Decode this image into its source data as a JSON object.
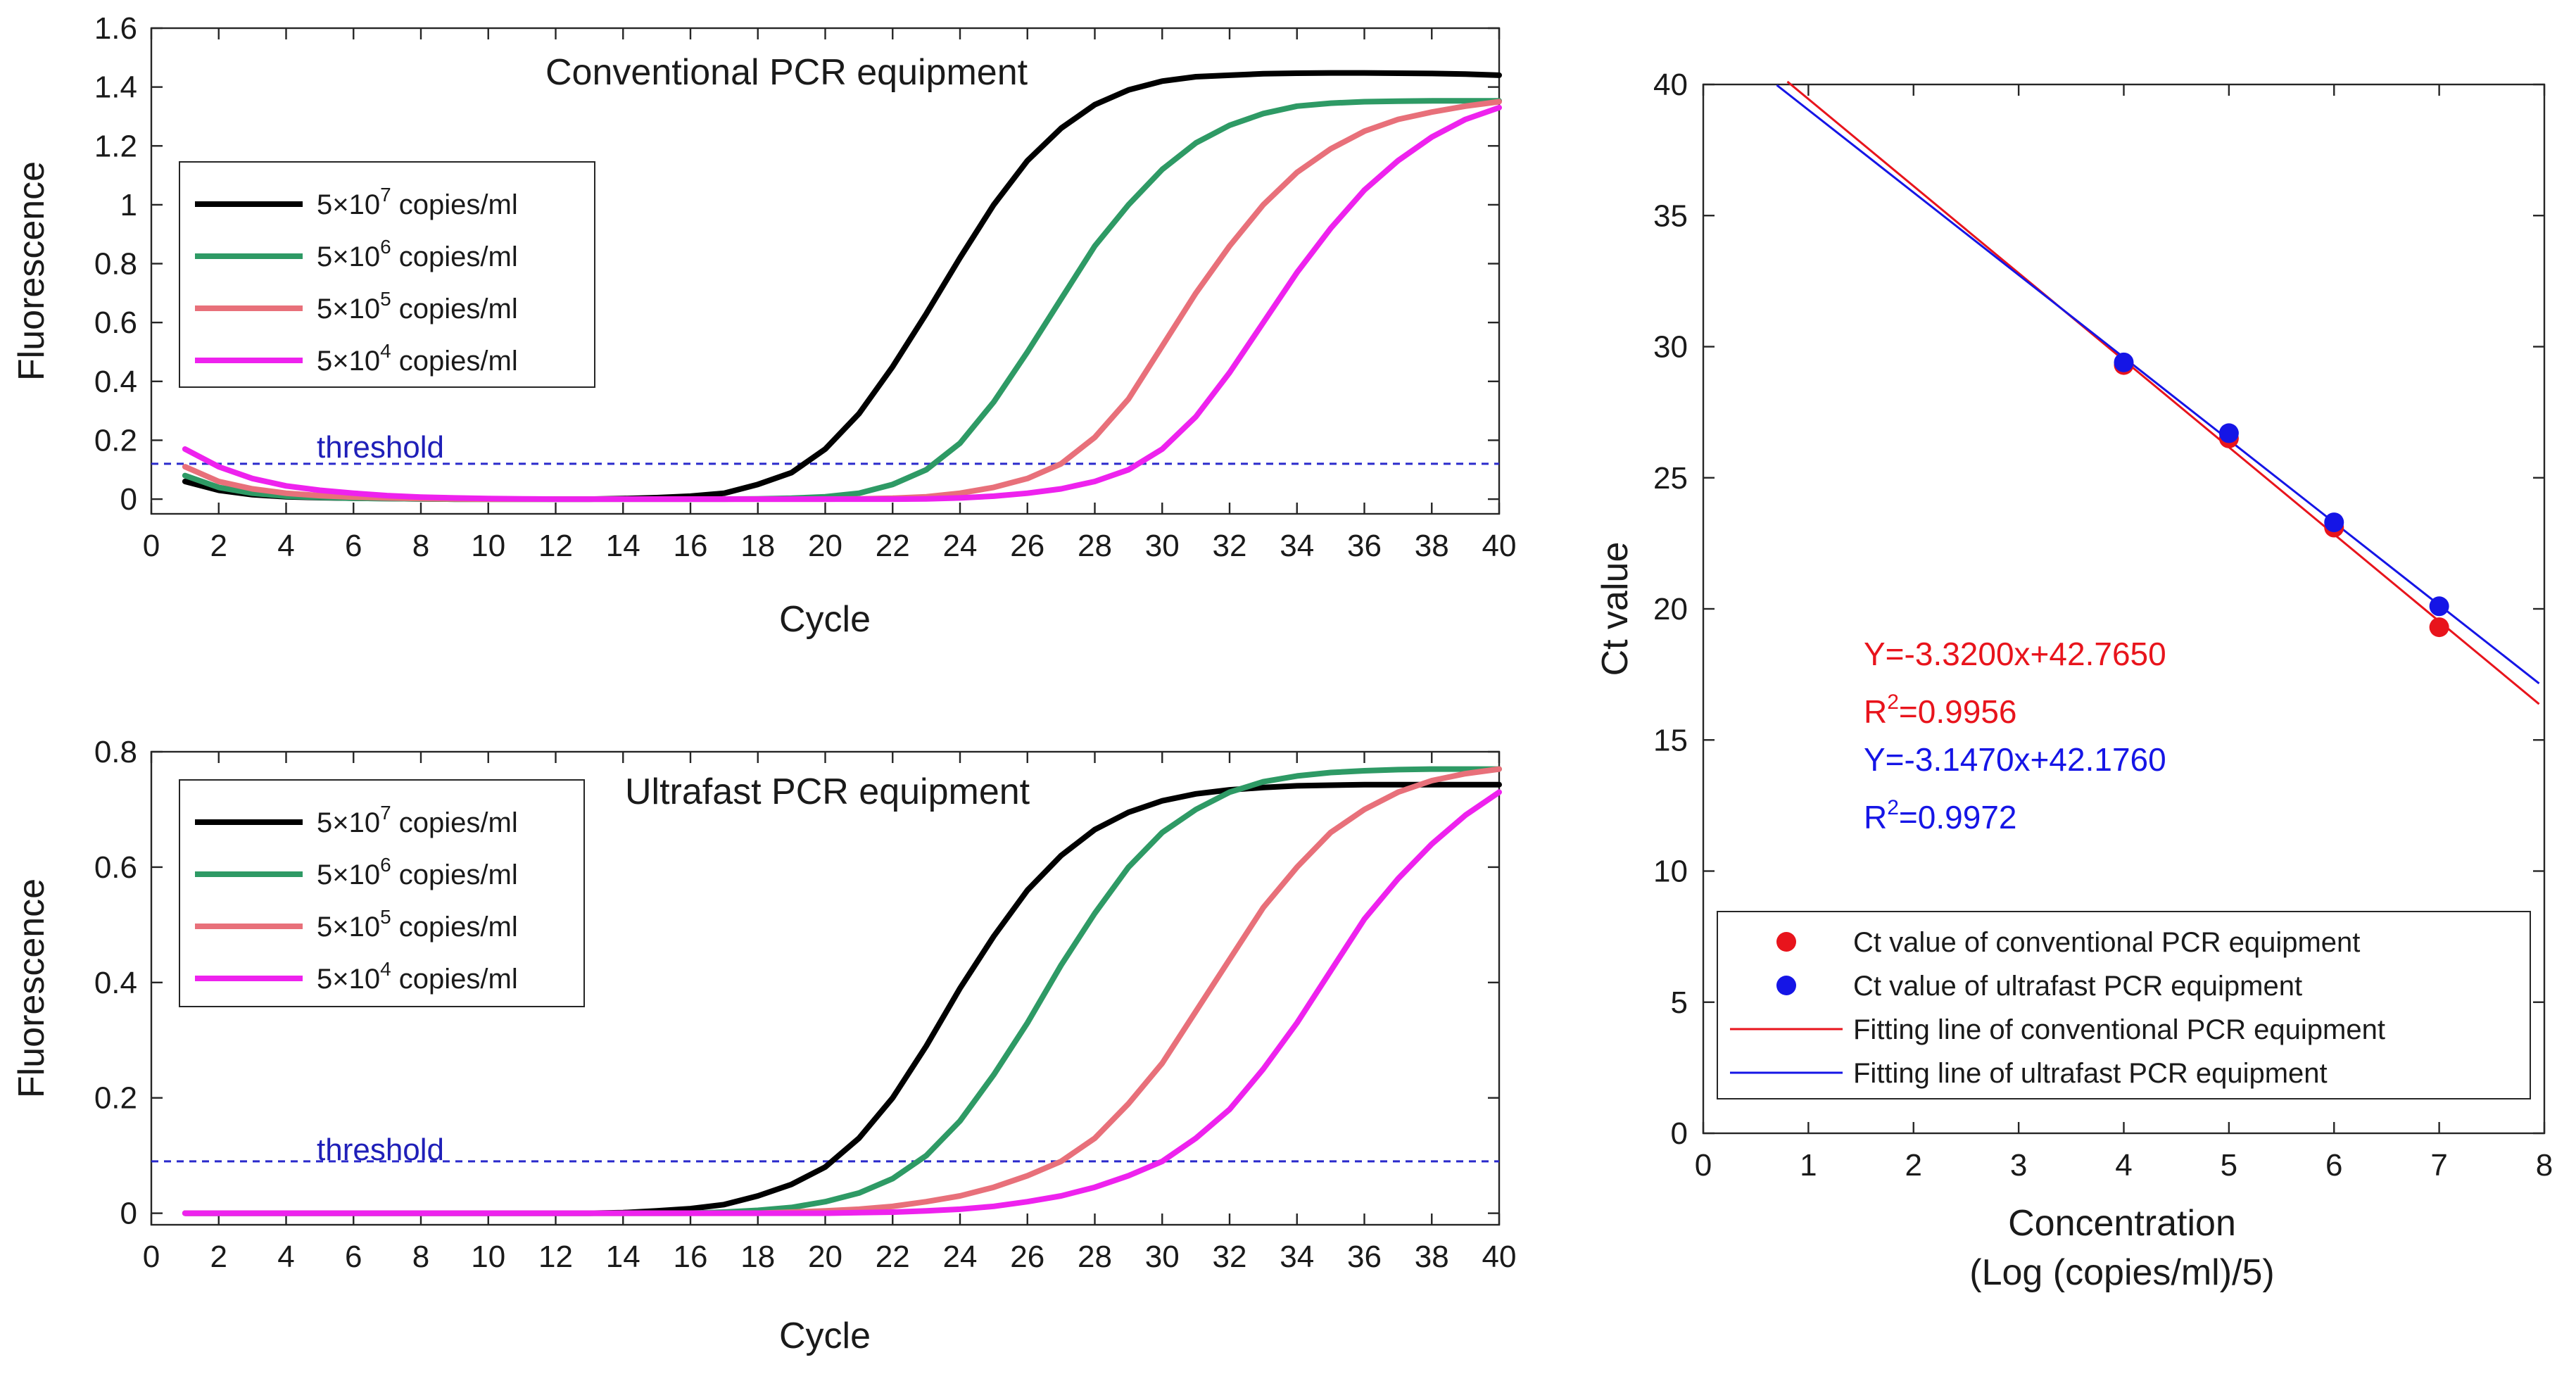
{
  "chart_data": [
    {
      "type": "line",
      "id": "top",
      "title": "Conventional PCR equipment",
      "xlabel": "Cycle",
      "ylabel": "Fluorescence",
      "xlim": [
        0,
        40
      ],
      "ylim": [
        -0.05,
        1.6
      ],
      "xticks": [
        0,
        2,
        4,
        6,
        8,
        10,
        12,
        14,
        16,
        18,
        20,
        22,
        24,
        26,
        28,
        30,
        32,
        34,
        36,
        38,
        40
      ],
      "yticks": [
        0,
        0.2,
        0.4,
        0.6,
        0.8,
        1,
        1.2,
        1.4,
        1.6
      ],
      "ytick_labels": [
        "0",
        "0.2",
        "0.4",
        "0.6",
        "0.8",
        "1",
        "1.2",
        "1.4",
        "1.6"
      ],
      "threshold": {
        "label": "threshold",
        "value": 0.12
      },
      "legend": {
        "position": "left"
      },
      "x": [
        1,
        2,
        3,
        4,
        5,
        6,
        7,
        8,
        9,
        10,
        11,
        12,
        13,
        14,
        15,
        16,
        17,
        18,
        19,
        20,
        21,
        22,
        23,
        24,
        25,
        26,
        27,
        28,
        29,
        30,
        31,
        32,
        33,
        34,
        35,
        36,
        37,
        38,
        39,
        40
      ],
      "series": [
        {
          "name_base": "5×10",
          "name_exp": "7",
          "name_unit": " copies/ml",
          "color": "#000000",
          "values": [
            0.06,
            0.03,
            0.015,
            0.008,
            0.005,
            0.003,
            0.002,
            0.001,
            0,
            0,
            0,
            0,
            0,
            0.002,
            0.005,
            0.01,
            0.02,
            0.05,
            0.09,
            0.17,
            0.29,
            0.45,
            0.63,
            0.82,
            1.0,
            1.15,
            1.26,
            1.34,
            1.39,
            1.42,
            1.435,
            1.44,
            1.445,
            1.447,
            1.448,
            1.448,
            1.447,
            1.446,
            1.444,
            1.44
          ]
        },
        {
          "name_base": "5×10",
          "name_exp": "6",
          "name_unit": " copies/ml",
          "color": "#2e9a65",
          "values": [
            0.08,
            0.04,
            0.02,
            0.01,
            0.006,
            0.003,
            0.002,
            0.001,
            0,
            0,
            0,
            0,
            0,
            0,
            0,
            0,
            0,
            0.001,
            0.003,
            0.008,
            0.02,
            0.05,
            0.1,
            0.19,
            0.33,
            0.5,
            0.68,
            0.86,
            1.0,
            1.12,
            1.21,
            1.27,
            1.31,
            1.335,
            1.345,
            1.35,
            1.352,
            1.353,
            1.353,
            1.353
          ]
        },
        {
          "name_base": "5×10",
          "name_exp": "5",
          "name_unit": " copies/ml",
          "color": "#e8707a",
          "values": [
            0.11,
            0.06,
            0.035,
            0.02,
            0.012,
            0.007,
            0.004,
            0.002,
            0.001,
            0,
            0,
            0,
            0,
            0,
            0,
            0,
            0,
            0,
            0,
            0,
            0.001,
            0.003,
            0.008,
            0.02,
            0.04,
            0.07,
            0.12,
            0.21,
            0.34,
            0.52,
            0.7,
            0.86,
            1.0,
            1.11,
            1.19,
            1.25,
            1.29,
            1.315,
            1.335,
            1.35
          ]
        },
        {
          "name_base": "5×10",
          "name_exp": "4",
          "name_unit": " copies/ml",
          "color": "#ee22ee",
          "values": [
            0.17,
            0.11,
            0.07,
            0.045,
            0.03,
            0.02,
            0.012,
            0.007,
            0.004,
            0.002,
            0.001,
            0,
            0,
            0,
            0,
            0,
            0,
            0,
            0,
            0,
            0,
            0,
            0.001,
            0.004,
            0.01,
            0.02,
            0.035,
            0.06,
            0.1,
            0.17,
            0.28,
            0.43,
            0.6,
            0.77,
            0.92,
            1.05,
            1.15,
            1.23,
            1.29,
            1.33
          ]
        }
      ]
    },
    {
      "type": "line",
      "id": "bottom",
      "title": "Ultrafast PCR equipment",
      "xlabel": "Cycle",
      "ylabel": "Fluorescence",
      "xlim": [
        0,
        40
      ],
      "ylim": [
        -0.02,
        0.8
      ],
      "xticks": [
        0,
        2,
        4,
        6,
        8,
        10,
        12,
        14,
        16,
        18,
        20,
        22,
        24,
        26,
        28,
        30,
        32,
        34,
        36,
        38,
        40
      ],
      "yticks": [
        0,
        0.2,
        0.4,
        0.6,
        0.8
      ],
      "ytick_labels": [
        "0",
        "0.2",
        "0.4",
        "0.6",
        "0.8"
      ],
      "threshold": {
        "label": "threshold",
        "value": 0.09
      },
      "legend": {
        "position": "top-left"
      },
      "x": [
        1,
        2,
        3,
        4,
        5,
        6,
        7,
        8,
        9,
        10,
        11,
        12,
        13,
        14,
        15,
        16,
        17,
        18,
        19,
        20,
        21,
        22,
        23,
        24,
        25,
        26,
        27,
        28,
        29,
        30,
        31,
        32,
        33,
        34,
        35,
        36,
        37,
        38,
        39,
        40
      ],
      "series": [
        {
          "name_base": "5×10",
          "name_exp": "7",
          "name_unit": " copies/ml",
          "color": "#000000",
          "values": [
            0,
            0,
            0,
            0,
            0,
            0,
            0,
            0,
            0,
            0,
            0,
            0,
            0,
            0.001,
            0.004,
            0.008,
            0.015,
            0.03,
            0.05,
            0.08,
            0.13,
            0.2,
            0.29,
            0.39,
            0.48,
            0.56,
            0.62,
            0.665,
            0.695,
            0.715,
            0.727,
            0.734,
            0.738,
            0.741,
            0.742,
            0.743,
            0.743,
            0.743,
            0.743,
            0.743
          ]
        },
        {
          "name_base": "5×10",
          "name_exp": "6",
          "name_unit": " copies/ml",
          "color": "#2e9a65",
          "values": [
            0,
            0,
            0,
            0,
            0,
            0,
            0,
            0,
            0,
            0,
            0,
            0,
            0,
            0,
            0,
            0,
            0.002,
            0.005,
            0.01,
            0.02,
            0.035,
            0.06,
            0.1,
            0.16,
            0.24,
            0.33,
            0.43,
            0.52,
            0.6,
            0.66,
            0.7,
            0.73,
            0.748,
            0.758,
            0.764,
            0.767,
            0.769,
            0.77,
            0.77,
            0.77
          ]
        },
        {
          "name_base": "5×10",
          "name_exp": "5",
          "name_unit": " copies/ml",
          "color": "#e8707a",
          "values": [
            0,
            0,
            0,
            0,
            0,
            0,
            0,
            0,
            0,
            0,
            0,
            0,
            0,
            0,
            0,
            0,
            0,
            0,
            0.002,
            0.004,
            0.007,
            0.012,
            0.02,
            0.03,
            0.045,
            0.065,
            0.09,
            0.13,
            0.19,
            0.26,
            0.35,
            0.44,
            0.53,
            0.6,
            0.66,
            0.7,
            0.73,
            0.75,
            0.762,
            0.77
          ]
        },
        {
          "name_base": "5×10",
          "name_exp": "4",
          "name_unit": " copies/ml",
          "color": "#ee22ee",
          "values": [
            0,
            0,
            0,
            0,
            0,
            0,
            0,
            0,
            0,
            0,
            0,
            0,
            0,
            0,
            0,
            0,
            0,
            0,
            0,
            0,
            0.001,
            0.002,
            0.004,
            0.007,
            0.012,
            0.02,
            0.03,
            0.045,
            0.065,
            0.09,
            0.13,
            0.18,
            0.25,
            0.33,
            0.42,
            0.51,
            0.58,
            0.64,
            0.69,
            0.73
          ]
        }
      ]
    },
    {
      "type": "scatter",
      "id": "right",
      "xlabel": "Concentration",
      "xlabel2": "(Log (copies/ml)/5)",
      "ylabel": "Ct value",
      "xlim": [
        0,
        8
      ],
      "ylim": [
        0,
        40
      ],
      "xticks": [
        0,
        1,
        2,
        3,
        4,
        5,
        6,
        7,
        8
      ],
      "yticks": [
        0,
        5,
        10,
        15,
        20,
        25,
        30,
        35,
        40
      ],
      "series": [
        {
          "name": "Ct value of conventional PCR equipment",
          "color": "#e8141c",
          "x": [
            4,
            5,
            6,
            7
          ],
          "y": [
            29.3,
            26.5,
            23.1,
            19.3
          ]
        },
        {
          "name": "Ct value of ultrafast PCR equipment",
          "color": "#1515e6",
          "x": [
            4,
            5,
            6,
            7
          ],
          "y": [
            29.4,
            26.7,
            23.3,
            20.1
          ]
        }
      ],
      "fits": [
        {
          "name": "Fitting line of conventional PCR equipment",
          "color": "#e8141c",
          "slope": -3.32,
          "intercept": 42.765,
          "x_range": [
            0.8,
            7.95
          ]
        },
        {
          "name": "Fitting line of ultrafast PCR equipment",
          "color": "#1515e6",
          "slope": -3.147,
          "intercept": 42.176,
          "x_range": [
            0.7,
            7.95
          ]
        }
      ],
      "equations": [
        {
          "eq": "Y=-3.3200x+42.7650",
          "r2_prefix": "R",
          "r2_exp": "2",
          "r2_value": "=0.9956",
          "color": "#e8141c"
        },
        {
          "eq": "Y=-3.1470x+42.1760",
          "r2_prefix": "R",
          "r2_exp": "2",
          "r2_value": "=0.9972",
          "color": "#1515e6"
        }
      ],
      "legend": {
        "position": "bottom"
      }
    }
  ]
}
